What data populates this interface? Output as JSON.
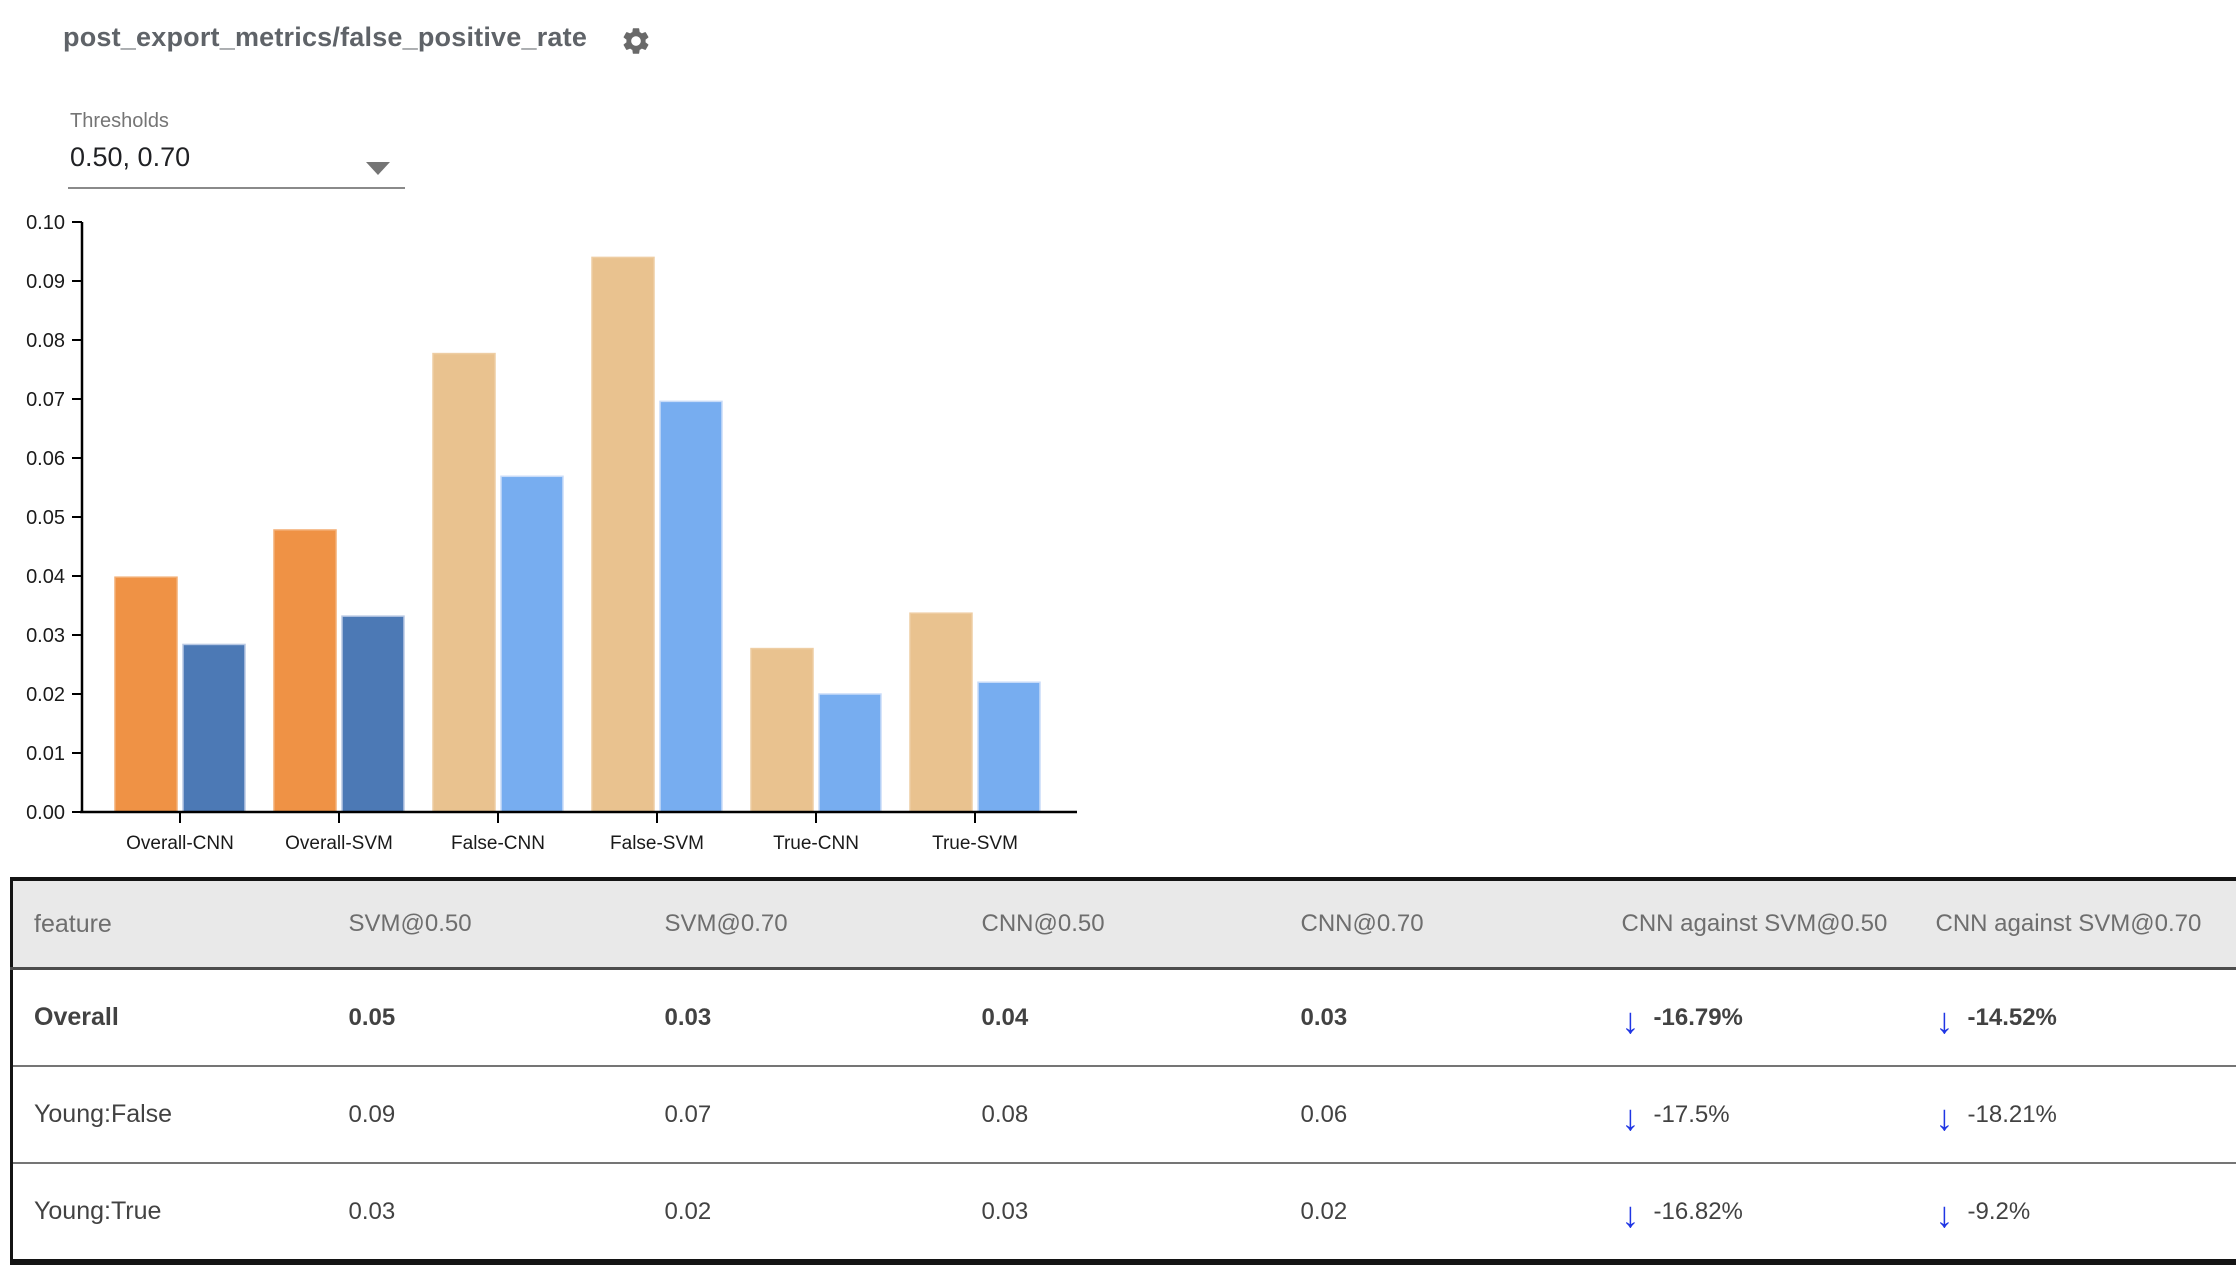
{
  "header": {
    "title": "post_export_metrics/false_positive_rate",
    "settings_icon": "gear-icon"
  },
  "controls": {
    "thresholds_label": "Thresholds",
    "thresholds_value": "0.50, 0.70"
  },
  "chart_data": {
    "type": "bar",
    "title": "",
    "categories": [
      "Overall-CNN",
      "Overall-SVM",
      "False-CNN",
      "False-SVM",
      "True-CNN",
      "True-SVM"
    ],
    "series": [
      {
        "name": "0.50",
        "values": [
          0.0398,
          0.0478,
          0.0777,
          0.094,
          0.0277,
          0.0337
        ],
        "colors": [
          "#EF9245",
          "#EF9245",
          "#E9C28F",
          "#E9C28F",
          "#E9C28F",
          "#E9C28F"
        ],
        "strokes": [
          "#f3ae74",
          "#f3ae74",
          "#eecda3",
          "#eecda3",
          "#eecda3",
          "#eecda3"
        ]
      },
      {
        "name": "0.70",
        "values": [
          0.0284,
          0.0332,
          0.0569,
          0.0696,
          0.02,
          0.022
        ],
        "colors": [
          "#4C79B5",
          "#4C79B5",
          "#77ADF0",
          "#77ADF0",
          "#77ADF0",
          "#77ADF0"
        ],
        "strokes": [
          "#b9c9e4",
          "#b9c9e4",
          "#c9dcf8",
          "#c9dcf8",
          "#c9dcf8",
          "#c9dcf8"
        ]
      }
    ],
    "xlabel": "",
    "ylabel": "",
    "ylim": [
      0,
      0.1
    ],
    "ytick_step": 0.01,
    "grid": false,
    "legend_position": "none"
  },
  "table": {
    "columns": [
      "feature",
      "SVM@0.50",
      "SVM@0.70",
      "CNN@0.50",
      "CNN@0.70",
      "CNN against SVM@0.50",
      "CNN against SVM@0.70"
    ],
    "rows": [
      {
        "feature": "Overall",
        "values": [
          "0.05",
          "0.03",
          "0.04",
          "0.03"
        ],
        "deltas": [
          "-16.79%",
          "-14.52%"
        ],
        "highlight": true
      },
      {
        "feature": "Young:False",
        "values": [
          "0.09",
          "0.07",
          "0.08",
          "0.06"
        ],
        "deltas": [
          "-17.5%",
          "-18.21%"
        ],
        "highlight": false
      },
      {
        "feature": "Young:True",
        "values": [
          "0.03",
          "0.02",
          "0.03",
          "0.02"
        ],
        "deltas": [
          "-16.82%",
          "-9.2%"
        ],
        "highlight": false
      }
    ],
    "delta_arrow": "↓"
  },
  "colors": {
    "title_gray": "#5f6368",
    "accent_green": "#469b7e",
    "arrow_blue": "#2036e4",
    "bar_orange": "#EF9245",
    "bar_dark_blue": "#4C79B5",
    "bar_tan": "#E9C28F",
    "bar_light_blue": "#77ADF0",
    "header_bg": "#e9e9e9"
  }
}
